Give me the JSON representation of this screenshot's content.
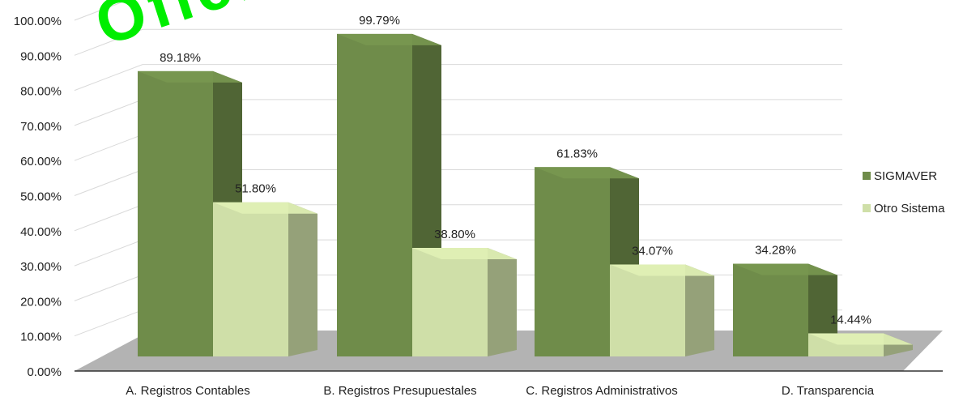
{
  "chart_data": {
    "type": "bar",
    "title": "",
    "xlabel": "",
    "ylabel": "",
    "categories": [
      "A. Registros Contables",
      "B. Registros Presupuestales",
      "C. Registros Administrativos",
      "D. Transparencia"
    ],
    "series": [
      {
        "name": "SIGMAVER",
        "values": [
          89.18,
          99.79,
          61.83,
          34.28
        ],
        "labels": [
          "89.18%",
          "99.79%",
          "61.83%",
          "34.28%"
        ]
      },
      {
        "name": "Otro Sistema",
        "values": [
          51.8,
          38.8,
          34.07,
          14.44
        ],
        "labels": [
          "51.80%",
          "38.80%",
          "34.07%",
          "14.44%"
        ]
      }
    ],
    "ylim": [
      0,
      100
    ],
    "yticks": [
      "0.00%",
      "10.00%",
      "20.00%",
      "30.00%",
      "40.00%",
      "50.00%",
      "60.00%",
      "70.00%",
      "80.00%",
      "90.00%",
      "100.00%"
    ],
    "legend_position": "right",
    "grid": true,
    "style": "3d-clustered-column",
    "colors": {
      "SIGMAVER": "#6f8c4a",
      "Otro Sistema": "#cfdfa8",
      "floor": "#b3b3b3",
      "watermark": "#00ee00"
    },
    "watermark_text": "Oficial"
  }
}
